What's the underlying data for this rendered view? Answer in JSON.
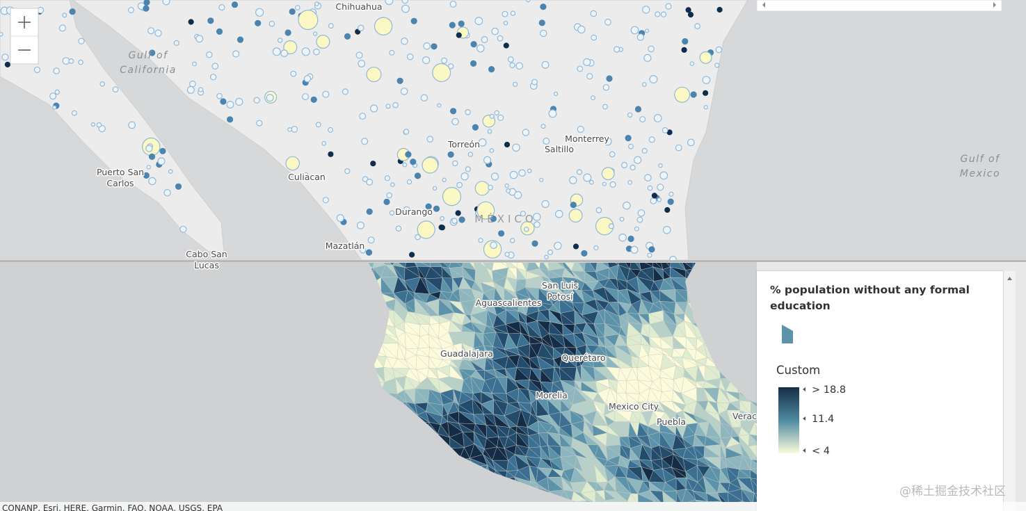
{
  "top_map": {
    "labels": [
      {
        "lines": [
          "Chihuahua"
        ]
      },
      {
        "lines": [
          "Gulf of",
          "California"
        ]
      },
      {
        "lines": [
          "Puerto San",
          "Carlos"
        ]
      },
      {
        "lines": [
          "Culiacan"
        ]
      },
      {
        "lines": [
          "Torreón"
        ]
      },
      {
        "lines": [
          "Monterrey"
        ]
      },
      {
        "lines": [
          "Saltillo"
        ]
      },
      {
        "lines": [
          "Durango"
        ]
      },
      {
        "lines": [
          "MÉXICO"
        ]
      },
      {
        "lines": [
          "Mazatlán"
        ]
      },
      {
        "lines": [
          "Cabo San",
          "Lucas"
        ]
      },
      {
        "lines": [
          "Gulf of",
          "Mexico"
        ]
      }
    ]
  },
  "bottom_map": {
    "labels": [
      {
        "lines": [
          "Aguascalientes"
        ]
      },
      {
        "lines": [
          "San Luis",
          "Potosí"
        ]
      },
      {
        "lines": [
          "Guadalajara"
        ]
      },
      {
        "lines": [
          "Querétaro"
        ]
      },
      {
        "lines": [
          "Morelia"
        ]
      },
      {
        "lines": [
          "Mexico City"
        ]
      },
      {
        "lines": [
          "Puebla"
        ]
      },
      {
        "lines": [
          "Verac"
        ]
      }
    ]
  },
  "legend": {
    "title": "% population without any formal education",
    "ramp_label": "Custom",
    "stops": [
      "> 18.8",
      "11.4",
      "< 4"
    ]
  },
  "attribution": "CONANP, Esri, HERE, Garmin, FAO, NOAA, USGS, EPA",
  "watermark": "@稀土掘金技术社区"
}
